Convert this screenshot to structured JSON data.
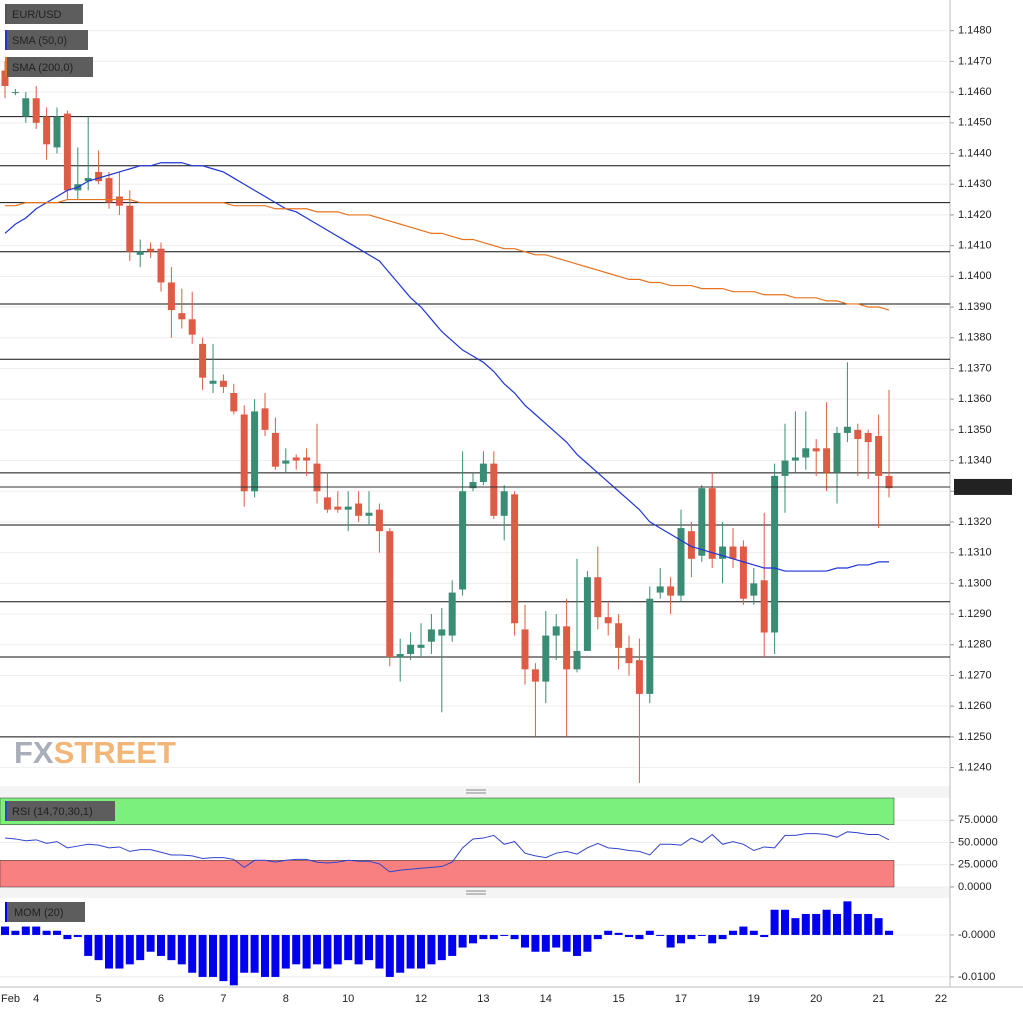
{
  "chart_data": [
    {
      "type": "candlestick",
      "title": "EUR/USD",
      "categories": [
        "Feb",
        null,
        null,
        "4",
        null,
        null,
        null,
        null,
        null,
        "5",
        null,
        null,
        null,
        null,
        null,
        "6",
        null,
        null,
        null,
        null,
        null,
        "7",
        null,
        null,
        null,
        null,
        null,
        "8",
        null,
        null,
        null,
        null,
        null,
        "10",
        null,
        null,
        null,
        null,
        null,
        null,
        "12",
        null,
        null,
        null,
        null,
        null,
        "13",
        null,
        null,
        null,
        null,
        null,
        "14",
        null,
        null,
        null,
        null,
        null,
        null,
        "15",
        null,
        null,
        null,
        null,
        null,
        "17",
        null,
        null,
        null,
        null,
        null,
        null,
        "19",
        null,
        null,
        null,
        null,
        null,
        "20",
        null,
        null,
        null,
        null,
        null,
        "21",
        null,
        null,
        null,
        null,
        null,
        "22"
      ],
      "open": [
        1.1467,
        1.146,
        1.1452,
        1.1458,
        1.1452,
        1.1442,
        1.1453,
        1.1428,
        1.1431,
        1.1434,
        1.1432,
        1.1426,
        1.1423,
        1.1407,
        1.1409,
        1.1409,
        1.1398,
        1.1388,
        1.1386,
        1.1378,
        1.1365,
        1.1366,
        1.1362,
        1.1355,
        1.133,
        1.1357,
        1.1349,
        1.1339,
        1.1341,
        1.1341,
        1.1339,
        1.1328,
        1.1325,
        1.1324,
        1.1326,
        1.1322,
        1.1324,
        1.1317,
        1.1276,
        1.1277,
        1.1279,
        1.1281,
        1.1283,
        1.1283,
        1.1298,
        1.1331,
        1.1333,
        1.1339,
        1.1322,
        1.1329,
        1.1285,
        1.1272,
        1.1268,
        1.1283,
        1.1286,
        1.1272,
        1.1278,
        1.1302,
        1.1289,
        1.1287,
        1.1279,
        1.1275,
        1.1264,
        1.1297,
        1.1299,
        1.1296,
        1.1317,
        1.1309,
        1.1331,
        1.1308,
        1.1312,
        1.1312,
        1.1296,
        1.1301,
        1.1284,
        1.1335,
        1.134,
        1.1341,
        1.1344,
        1.1344,
        1.1336,
        1.1349,
        1.135,
        1.1349,
        1.1348,
        1.1335,
        null,
        null,
        null,
        null,
        null
      ],
      "high": [
        1.147,
        1.1461,
        1.146,
        1.1462,
        1.1455,
        1.1455,
        1.1454,
        1.1442,
        1.1452,
        1.1441,
        1.1434,
        1.1434,
        1.1428,
        1.1412,
        1.1411,
        1.1411,
        1.1403,
        1.1396,
        1.1395,
        1.138,
        1.1378,
        1.1368,
        1.1365,
        1.1358,
        1.136,
        1.1362,
        1.1354,
        1.1344,
        1.1342,
        1.1344,
        1.1352,
        1.1336,
        1.133,
        1.133,
        1.133,
        1.133,
        1.1326,
        1.1318,
        1.1282,
        1.1284,
        1.1287,
        1.129,
        1.1292,
        1.1301,
        1.1343,
        1.1336,
        1.1343,
        1.1343,
        1.1332,
        1.133,
        1.1293,
        1.1274,
        1.1291,
        1.129,
        1.1295,
        1.1308,
        1.1304,
        1.1312,
        1.1294,
        1.129,
        1.1283,
        1.1282,
        1.1299,
        1.1305,
        1.1302,
        1.1324,
        1.132,
        1.1332,
        1.1336,
        1.132,
        1.1318,
        1.1314,
        1.1305,
        1.1323,
        1.1339,
        1.1352,
        1.1356,
        1.1356,
        1.1347,
        1.1359,
        1.1351,
        1.1372,
        1.1352,
        1.135,
        1.1355,
        1.1363,
        null,
        null,
        null,
        null,
        null
      ],
      "low": [
        1.1458,
        1.1459,
        1.145,
        1.1448,
        1.1438,
        1.144,
        1.1425,
        1.1425,
        1.1428,
        1.143,
        1.1422,
        1.142,
        1.1405,
        1.1403,
        1.1406,
        1.1395,
        1.138,
        1.1383,
        1.1378,
        1.1363,
        1.1362,
        1.1362,
        1.1355,
        1.1325,
        1.1328,
        1.1348,
        1.1337,
        1.1336,
        1.1337,
        1.1335,
        1.1326,
        1.1323,
        1.1323,
        1.1317,
        1.132,
        1.1319,
        1.131,
        1.1273,
        1.1268,
        1.1275,
        1.1276,
        1.1277,
        1.1258,
        1.1281,
        1.1296,
        1.133,
        1.1332,
        1.1321,
        1.1314,
        1.1283,
        1.1267,
        1.125,
        1.1261,
        1.1275,
        1.125,
        1.1271,
        1.1278,
        1.1285,
        1.1283,
        1.1272,
        1.127,
        1.1235,
        1.1261,
        1.1295,
        1.129,
        1.1294,
        1.1302,
        1.1307,
        1.1305,
        1.13,
        1.1305,
        1.1293,
        1.1293,
        1.1276,
        1.1277,
        1.1323,
        1.1336,
        1.1337,
        1.1335,
        1.133,
        1.1326,
        1.1346,
        1.1335,
        1.1334,
        1.1318,
        1.1328,
        null,
        null,
        null,
        null,
        null
      ],
      "close": [
        1.1462,
        1.146,
        1.1458,
        1.145,
        1.1443,
        1.1452,
        1.1428,
        1.143,
        1.1432,
        1.1431,
        1.1424,
        1.1423,
        1.1408,
        1.1408,
        1.1408,
        1.1398,
        1.1389,
        1.1386,
        1.1381,
        1.1367,
        1.1366,
        1.1364,
        1.1356,
        1.133,
        1.1356,
        1.135,
        1.1338,
        1.134,
        1.134,
        1.134,
        1.133,
        1.1324,
        1.1324,
        1.1325,
        1.1322,
        1.1323,
        1.1317,
        1.1276,
        1.1277,
        1.128,
        1.128,
        1.1285,
        1.1285,
        1.1297,
        1.133,
        1.1333,
        1.1339,
        1.1322,
        1.133,
        1.1287,
        1.1272,
        1.1268,
        1.1283,
        1.1286,
        1.1272,
        1.1278,
        1.1302,
        1.1289,
        1.1287,
        1.1279,
        1.1274,
        1.1264,
        1.1295,
        1.1299,
        1.1296,
        1.1318,
        1.1308,
        1.1331,
        1.1308,
        1.1312,
        1.1308,
        1.1295,
        1.13,
        1.1284,
        1.1335,
        1.134,
        1.1341,
        1.1344,
        1.1343,
        1.1336,
        1.1349,
        1.1351,
        1.1347,
        1.1346,
        1.1335,
        1.1331,
        null,
        null,
        null,
        null,
        null
      ],
      "up_color": "#3a8c74",
      "down_color": "#de5c45",
      "overlays": [
        {
          "name": "SMA (50,0)",
          "color": "#1f35d8",
          "values": [
            1.1414,
            1.1417,
            1.1419,
            1.1422,
            1.1424,
            1.1426,
            1.1428,
            1.1429,
            1.1431,
            1.1432,
            1.1433,
            1.1434,
            1.1435,
            1.1436,
            1.1436,
            1.1437,
            1.1437,
            1.1437,
            1.1436,
            1.1436,
            1.1435,
            1.1434,
            1.1432,
            1.143,
            1.1428,
            1.1426,
            1.1424,
            1.1422,
            1.1421,
            1.1419,
            1.1417,
            1.1415,
            1.1413,
            1.1411,
            1.1409,
            1.1407,
            1.1405,
            1.1401,
            1.1397,
            1.1393,
            1.139,
            1.1386,
            1.1382,
            1.1379,
            1.1376,
            1.1374,
            1.1372,
            1.1369,
            1.1365,
            1.1362,
            1.1358,
            1.1355,
            1.1352,
            1.1349,
            1.1346,
            1.1342,
            1.1339,
            1.1336,
            1.1333,
            1.133,
            1.1327,
            1.1324,
            1.132,
            1.1318,
            1.1316,
            1.1314,
            1.1312,
            1.1311,
            1.131,
            1.1309,
            1.1308,
            1.1307,
            1.1306,
            1.1305,
            1.1305,
            1.1304,
            1.1304,
            1.1304,
            1.1304,
            1.1304,
            1.1305,
            1.1305,
            1.1306,
            1.1306,
            1.1307,
            1.1307,
            null,
            null,
            null,
            null,
            null
          ]
        },
        {
          "name": "SMA (200,0)",
          "color": "#e8731f",
          "values": [
            1.1423,
            1.1423,
            1.1424,
            1.1424,
            1.1424,
            1.1424,
            1.1425,
            1.1425,
            1.1425,
            1.1425,
            1.1425,
            1.1425,
            1.1425,
            1.1424,
            1.1424,
            1.1424,
            1.1424,
            1.1424,
            1.1424,
            1.1424,
            1.1424,
            1.1424,
            1.1423,
            1.1423,
            1.1423,
            1.1423,
            1.1422,
            1.1422,
            1.1422,
            1.1422,
            1.1421,
            1.1421,
            1.1421,
            1.142,
            1.142,
            1.142,
            1.1419,
            1.1418,
            1.1417,
            1.1416,
            1.1415,
            1.1414,
            1.1414,
            1.1413,
            1.1412,
            1.1412,
            1.1411,
            1.141,
            1.1409,
            1.1409,
            1.1408,
            1.1407,
            1.1407,
            1.1406,
            1.1405,
            1.1404,
            1.1403,
            1.1402,
            1.1401,
            1.14,
            1.1399,
            1.1399,
            1.1398,
            1.1398,
            1.1397,
            1.1397,
            1.1397,
            1.1396,
            1.1396,
            1.1396,
            1.1395,
            1.1395,
            1.1395,
            1.1394,
            1.1394,
            1.1394,
            1.1393,
            1.1393,
            1.1393,
            1.1392,
            1.1392,
            1.1391,
            1.1391,
            1.139,
            1.139,
            1.1389,
            null,
            null,
            null,
            null,
            null
          ]
        }
      ],
      "levels": [
        1.1452,
        1.1436,
        1.1424,
        1.1408,
        1.1391,
        1.1373,
        1.1336,
        1.1319,
        1.1294,
        1.1276,
        1.125
      ],
      "last_price": 1.13314,
      "watermark": [
        "FX",
        "STREET"
      ],
      "ylim": [
        1.1234,
        1.149
      ],
      "yticks": [
        {
          "value": 1.148,
          "label": "1.1480"
        },
        {
          "value": 1.147,
          "label": "1.1470"
        },
        {
          "value": 1.146,
          "label": "1.1460"
        },
        {
          "value": 1.145,
          "label": "1.1450"
        },
        {
          "value": 1.144,
          "label": "1.1440"
        },
        {
          "value": 1.143,
          "label": "1.1430"
        },
        {
          "value": 1.142,
          "label": "1.1420"
        },
        {
          "value": 1.141,
          "label": "1.1410"
        },
        {
          "value": 1.14,
          "label": "1.1400"
        },
        {
          "value": 1.139,
          "label": "1.1390"
        },
        {
          "value": 1.138,
          "label": "1.1380"
        },
        {
          "value": 1.137,
          "label": "1.1370"
        },
        {
          "value": 1.136,
          "label": "1.1360"
        },
        {
          "value": 1.135,
          "label": "1.1350"
        },
        {
          "value": 1.134,
          "label": "1.1340"
        },
        {
          "value": 1.133,
          "label": "1.1330"
        },
        {
          "value": 1.132,
          "label": "1.1320"
        },
        {
          "value": 1.131,
          "label": "1.1310"
        },
        {
          "value": 1.13,
          "label": "1.1300"
        },
        {
          "value": 1.129,
          "label": "1.1290"
        },
        {
          "value": 1.128,
          "label": "1.1280"
        },
        {
          "value": 1.127,
          "label": "1.1270"
        },
        {
          "value": 1.126,
          "label": "1.1260"
        },
        {
          "value": 1.125,
          "label": "1.1250"
        },
        {
          "value": 1.124,
          "label": "1.1240"
        }
      ],
      "grid": true
    },
    {
      "type": "line",
      "title": "RSI (14,70,30,1)",
      "color": "#3344cc",
      "values": [
        55,
        54,
        52,
        53,
        49,
        51,
        44,
        46,
        48,
        47,
        44,
        45,
        40,
        42,
        42,
        39,
        36,
        36,
        35,
        32,
        33,
        33,
        31,
        22,
        30,
        30,
        28,
        30,
        31,
        31,
        28,
        27,
        28,
        30,
        29,
        29,
        26,
        17,
        19,
        20,
        21,
        22,
        23,
        28,
        44,
        54,
        55,
        58,
        48,
        51,
        38,
        35,
        33,
        38,
        40,
        37,
        44,
        49,
        44,
        43,
        41,
        40,
        36,
        48,
        48,
        47,
        55,
        50,
        59,
        48,
        51,
        48,
        41,
        45,
        44,
        58,
        58,
        60,
        60,
        59,
        56,
        62,
        61,
        59,
        59,
        53,
        null,
        null,
        null,
        null,
        null
      ],
      "overbought": 70,
      "oversold": 30,
      "overbought_color": "#7cf07c",
      "oversold_color": "#f98080",
      "ylim": [
        0,
        100
      ],
      "yticks": [
        {
          "value": 75,
          "label": "75.0000"
        },
        {
          "value": 50,
          "label": "50.0000"
        },
        {
          "value": 25,
          "label": "25.0000"
        },
        {
          "value": 0,
          "label": "0.0000"
        }
      ],
      "grid": true
    },
    {
      "type": "bar",
      "title": "MOM (20)",
      "color": "#0000ee",
      "values": [
        0.002,
        0.001,
        0.002,
        0.002,
        0.001,
        0.001,
        -0.001,
        -0.0005,
        -0.005,
        -0.006,
        -0.008,
        -0.008,
        -0.007,
        -0.006,
        -0.004,
        -0.005,
        -0.006,
        -0.007,
        -0.009,
        -0.01,
        -0.01,
        -0.011,
        -0.012,
        -0.009,
        -0.009,
        -0.01,
        -0.01,
        -0.008,
        -0.007,
        -0.008,
        -0.007,
        -0.008,
        -0.007,
        -0.006,
        -0.007,
        -0.006,
        -0.008,
        -0.01,
        -0.009,
        -0.008,
        -0.008,
        -0.007,
        -0.006,
        -0.005,
        -0.003,
        -0.002,
        -0.001,
        -0.001,
        0,
        -0.001,
        -0.003,
        -0.004,
        -0.004,
        -0.003,
        -0.004,
        -0.005,
        -0.004,
        -0.001,
        0.001,
        0.0005,
        -0.0005,
        -0.001,
        0.001,
        0,
        -0.003,
        -0.002,
        -0.001,
        0,
        -0.002,
        -0.001,
        0.001,
        0.002,
        0.001,
        -0.0005,
        0.006,
        0.006,
        0.004,
        0.005,
        0.005,
        0.006,
        0.005,
        0.008,
        0.005,
        0.005,
        0.004,
        0.001,
        null,
        null,
        null,
        null,
        null
      ],
      "ylim": [
        -0.0124,
        0.0088
      ],
      "yticks": [
        {
          "value": 0,
          "label": "-0.0000"
        },
        {
          "value": -0.01,
          "label": "-0.0100"
        }
      ],
      "grid": true
    }
  ]
}
